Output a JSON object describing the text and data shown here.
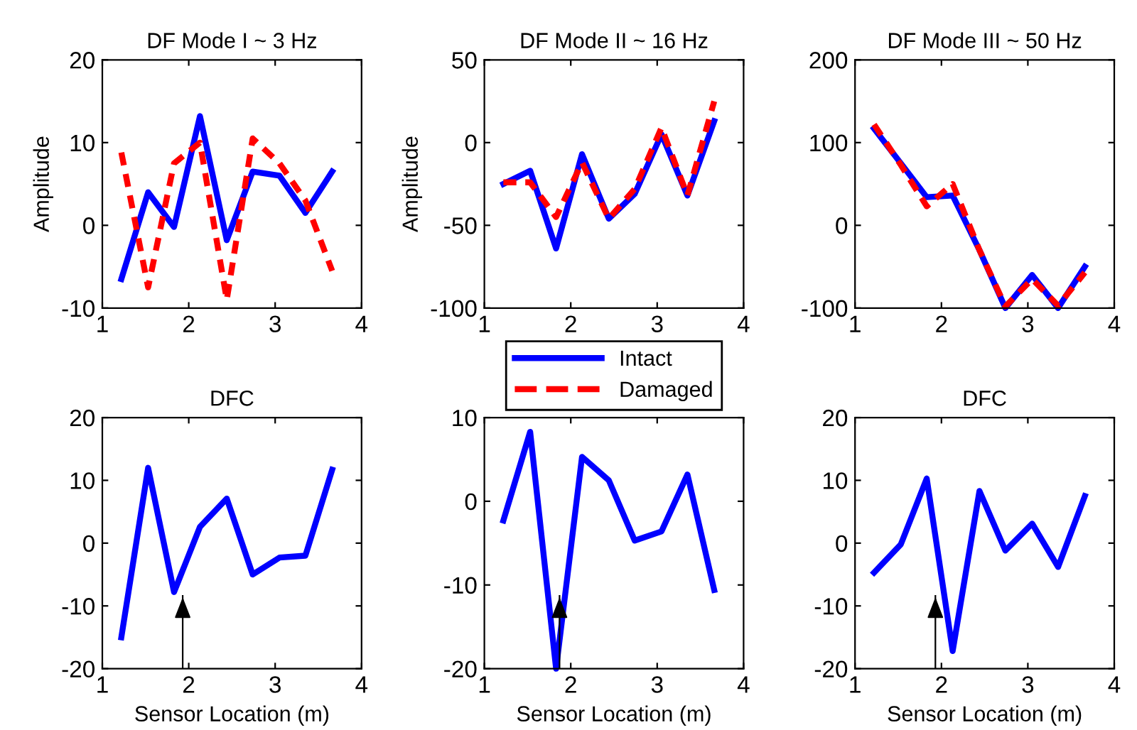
{
  "chart_data": [
    {
      "type": "line",
      "title": "DF Mode I ~ 3 Hz",
      "ylabel": "Amplitude",
      "x": [
        1.22,
        1.53,
        1.83,
        2.13,
        2.44,
        2.74,
        3.05,
        3.35,
        3.66
      ],
      "xlim": [
        1,
        4
      ],
      "xticks": [
        1,
        2,
        3,
        4
      ],
      "ylim": [
        -10,
        20
      ],
      "yticks": [
        -10,
        0,
        10,
        20
      ],
      "series": [
        {
          "color": "#0000ff",
          "line_style": "solid",
          "values": [
            -6.5,
            4,
            -0.2,
            13.2,
            -1.8,
            6.5,
            6,
            1.5,
            6.5
          ]
        },
        {
          "color": "#ff0000",
          "line_style": "dashed",
          "values": [
            8.8,
            -7.5,
            7.5,
            10,
            -9,
            10.5,
            7.5,
            3,
            -5.5
          ]
        }
      ],
      "legend": false,
      "grid": false
    },
    {
      "type": "line",
      "title": "DF Mode II ~ 16 Hz",
      "ylabel": "Amplitude",
      "x": [
        1.22,
        1.53,
        1.83,
        2.13,
        2.44,
        2.74,
        3.05,
        3.35,
        3.66
      ],
      "xlim": [
        1,
        4
      ],
      "xticks": [
        1,
        2,
        3,
        4
      ],
      "ylim": [
        -100,
        50
      ],
      "yticks": [
        -100,
        -50,
        0,
        50
      ],
      "series": [
        {
          "name": "Intact",
          "color": "#0000ff",
          "line_style": "solid",
          "values": [
            -25,
            -17,
            -64,
            -7,
            -46,
            -31,
            5,
            -32,
            13
          ]
        },
        {
          "name": "Damaged",
          "color": "#ff0000",
          "line_style": "dashed",
          "values": [
            -24,
            -24,
            -45,
            -12,
            -46,
            -28,
            9,
            -32,
            25
          ]
        }
      ],
      "legend": "bottom",
      "grid": false
    },
    {
      "type": "line",
      "title": "DF Mode III ~ 50 Hz",
      "x": [
        1.22,
        1.53,
        1.83,
        2.13,
        2.44,
        2.74,
        3.05,
        3.35,
        3.66
      ],
      "xlim": [
        1,
        4
      ],
      "xticks": [
        1,
        2,
        3,
        4
      ],
      "ylim": [
        -100,
        200
      ],
      "yticks": [
        -100,
        0,
        100,
        200
      ],
      "series": [
        {
          "color": "#0000ff",
          "line_style": "solid",
          "values": [
            117,
            75,
            34,
            36,
            -30,
            -100,
            -60,
            -100,
            -50
          ]
        },
        {
          "color": "#ff0000",
          "line_style": "dashed",
          "values": [
            122,
            73,
            23,
            50,
            -30,
            -98,
            -65,
            -97,
            -57
          ]
        }
      ],
      "legend": false,
      "grid": false
    },
    {
      "type": "line",
      "title": "DFC",
      "xlabel": "Sensor Location (m)",
      "x": [
        1.22,
        1.53,
        1.83,
        2.13,
        2.44,
        2.74,
        3.05,
        3.35,
        3.66
      ],
      "xlim": [
        1,
        4
      ],
      "xticks": [
        1,
        2,
        3,
        4
      ],
      "ylim": [
        -20,
        20
      ],
      "yticks": [
        -20,
        -10,
        0,
        10,
        20
      ],
      "series": [
        {
          "color": "#0000ff",
          "line_style": "solid",
          "values": [
            -15,
            12,
            -7.8,
            2.6,
            7.1,
            -5,
            -2.3,
            -2,
            11.7
          ]
        }
      ],
      "ref_lines": [
        {
          "axis": "x",
          "value": 1.93
        }
      ],
      "legend": false,
      "grid": false
    },
    {
      "type": "line",
      "xlabel": "Sensor Location (m)",
      "x": [
        1.22,
        1.53,
        1.83,
        2.13,
        2.44,
        2.74,
        3.05,
        3.35,
        3.66
      ],
      "xlim": [
        1,
        4
      ],
      "xticks": [
        1,
        2,
        3,
        4
      ],
      "ylim": [
        -20,
        10
      ],
      "yticks": [
        -20,
        -10,
        0,
        10
      ],
      "series": [
        {
          "color": "#0000ff",
          "line_style": "solid",
          "values": [
            -2.3,
            8.3,
            -20,
            5.3,
            2.5,
            -4.7,
            -3.6,
            3.2,
            -10.6
          ]
        }
      ],
      "ref_lines": [
        {
          "axis": "x",
          "value": 1.87
        }
      ],
      "legend": false,
      "grid": false
    },
    {
      "type": "line",
      "title": "DFC",
      "xlabel": "Sensor Location (m)",
      "x": [
        1.22,
        1.53,
        1.83,
        2.13,
        2.44,
        2.74,
        3.05,
        3.35,
        3.66
      ],
      "xlim": [
        1,
        4
      ],
      "xticks": [
        1,
        2,
        3,
        4
      ],
      "ylim": [
        -20,
        20
      ],
      "yticks": [
        -20,
        -10,
        0,
        10,
        20
      ],
      "series": [
        {
          "color": "#0000ff",
          "line_style": "solid",
          "values": [
            -4.7,
            -0.2,
            10.3,
            -17.2,
            8.3,
            -1.2,
            3.1,
            -3.8,
            7.5
          ]
        }
      ],
      "ref_lines": [
        {
          "axis": "x",
          "value": 1.93
        }
      ],
      "legend": false,
      "grid": false
    }
  ]
}
